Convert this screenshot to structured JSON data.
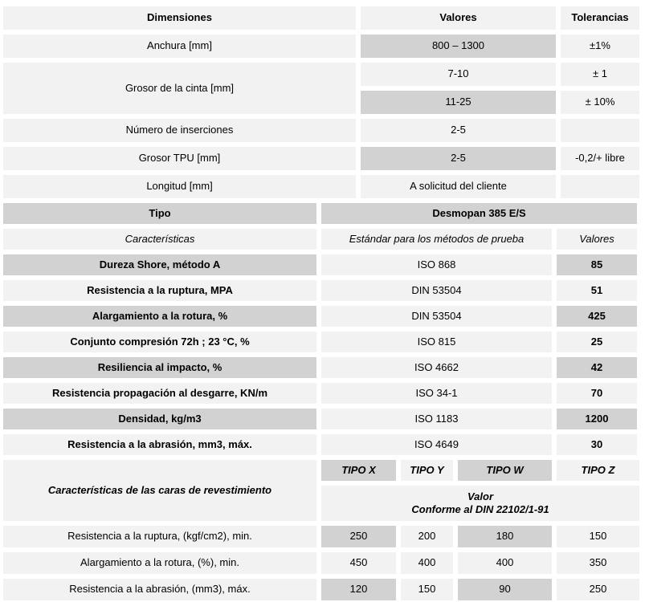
{
  "colors": {
    "background": "#ffffff",
    "cell_light": "#f2f2f2",
    "cell_shaded": "#d2d2d2",
    "text": "#000000"
  },
  "dimensions_section": {
    "headers": {
      "dimensiones": "Dimensiones",
      "valores": "Valores",
      "tolerancias": "Tolerancias"
    },
    "anchura": {
      "label": "Anchura [mm]",
      "valor": "800 – 1300",
      "tolerancia": "±1%"
    },
    "grosor_cinta": {
      "label": "Grosor de la cinta  [mm]",
      "valor_1": "7-10",
      "tolerancia_1": "± 1",
      "valor_2": "11-25",
      "tolerancia_2": "± 10%"
    },
    "inserciones": {
      "label": "Número de inserciones",
      "valor": "2-5",
      "tolerancia": ""
    },
    "grosor_tpu": {
      "label": "Grosor TPU [mm]",
      "valor": "2-5",
      "tolerancia": "-0,2/+ libre"
    },
    "longitud": {
      "label": "Longitud [mm]",
      "valor": "A solicitud del cliente",
      "tolerancia": ""
    }
  },
  "tipo_section": {
    "tipo_label": "Tipo",
    "tipo_valor": "Desmopan 385 E/S",
    "headers": {
      "caracteristicas": "Características",
      "estandar": "Estándar para los métodos de prueba",
      "valores": "Valores"
    },
    "rows": [
      {
        "caracteristica": "Dureza Shore, método A",
        "estandar": "ISO 868",
        "valor": "85"
      },
      {
        "caracteristica": "Resistencia a la ruptura, MPA",
        "estandar": "DIN 53504",
        "valor": "51"
      },
      {
        "caracteristica": "Alargamiento a la rotura, %",
        "estandar": "DIN 53504",
        "valor": "425"
      },
      {
        "caracteristica": "Conjunto compresión 72h ; 23 °C, %",
        "estandar": "ISO 815",
        "valor": "25"
      },
      {
        "caracteristica": "Resiliencia al impacto, %",
        "estandar": "ISO 4662",
        "valor": "42"
      },
      {
        "caracteristica": "Resistencia propagación al desgarre, KN/m",
        "estandar": "ISO 34-1",
        "valor": "70"
      },
      {
        "caracteristica": "Densidad, kg/m3",
        "estandar": "ISO 1183",
        "valor": "1200"
      },
      {
        "caracteristica": "Resistencia a la abrasión, mm3, máx.",
        "estandar": "ISO 4649",
        "valor": "30"
      }
    ]
  },
  "revestimiento_section": {
    "label": "Características de las caras de revestimiento",
    "tipo_headers": [
      "TIPO X",
      "TIPO Y",
      "TIPO W",
      "TIPO Z"
    ],
    "valor_nota_linea_1": "Valor",
    "valor_nota_linea_2": "Conforme al DIN 22102/1-91",
    "rows": [
      {
        "label": "Resistencia a la ruptura, (kgf/cm2), min.",
        "tipo_x": "250",
        "tipo_y": "200",
        "tipo_w": "180",
        "tipo_z": "150"
      },
      {
        "label": "Alargamiento a la rotura, (%), min.",
        "tipo_x": "450",
        "tipo_y": "400",
        "tipo_w": "400",
        "tipo_z": "350"
      },
      {
        "label": "Resistencia a la abrasión, (mm3), máx.",
        "tipo_x": "120",
        "tipo_y": "150",
        "tipo_w": "90",
        "tipo_z": "250"
      }
    ]
  }
}
